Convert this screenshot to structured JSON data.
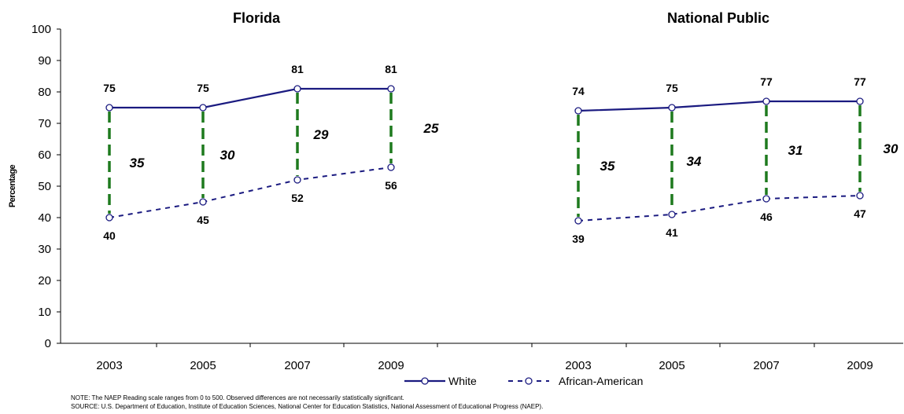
{
  "chart_data": {
    "type": "line",
    "ylabel": "Percentage",
    "ylim": [
      0,
      100
    ],
    "yticks": [
      0,
      10,
      20,
      30,
      40,
      50,
      60,
      70,
      80,
      90,
      100
    ],
    "grid": false,
    "legend_position": "bottom-center",
    "panels": [
      {
        "title": "Florida",
        "x": [
          "2003",
          "2005",
          "2007",
          "2009"
        ],
        "series": [
          {
            "name": "White",
            "style": "solid",
            "values": [
              75,
              75,
              81,
              81
            ]
          },
          {
            "name": "African-American",
            "style": "dashed",
            "values": [
              40,
              45,
              52,
              56
            ]
          }
        ],
        "gaps": [
          "35",
          "30",
          "29",
          "25"
        ]
      },
      {
        "title": "National Public",
        "x": [
          "2003",
          "2005",
          "2007",
          "2009"
        ],
        "series": [
          {
            "name": "White",
            "style": "solid",
            "values": [
              74,
              75,
              77,
              77
            ]
          },
          {
            "name": "African-American",
            "style": "dashed",
            "values": [
              39,
              41,
              46,
              47
            ]
          }
        ],
        "gaps": [
          "35",
          "34",
          "31",
          "30"
        ]
      }
    ],
    "legend": [
      "White",
      "African-American"
    ],
    "colors": {
      "series": "#1a1a80",
      "gap_line": "#1e7a1e",
      "axis": "#000000"
    }
  },
  "notes": {
    "note": "NOTE: The NAEP Reading scale ranges from 0 to 500. Observed differences are not necessarily statistically significant.",
    "source": "SOURCE: U.S. Department of Education, Institute of Education Sciences, National Center for Education Statistics, National Assessment of Educational Progress (NAEP)."
  }
}
